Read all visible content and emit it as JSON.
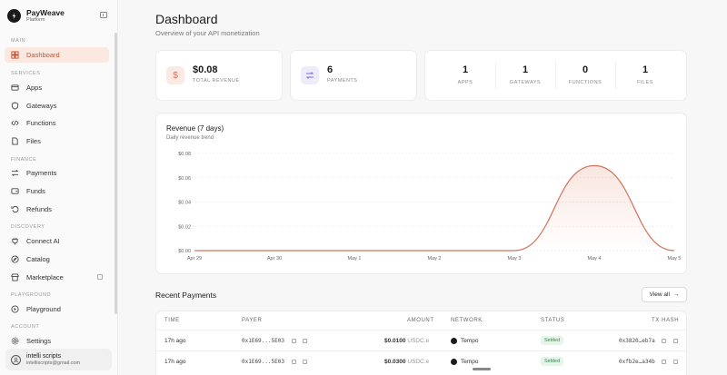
{
  "brand": {
    "name": "PayWeave",
    "sub": "Platform"
  },
  "nav": {
    "sections": [
      {
        "label": "MAIN",
        "items": [
          {
            "label": "Dashboard",
            "icon": "dashboard-icon",
            "active": true
          }
        ]
      },
      {
        "label": "SERVICES",
        "items": [
          {
            "label": "Apps",
            "icon": "apps-icon"
          },
          {
            "label": "Gateways",
            "icon": "shield-icon"
          },
          {
            "label": "Functions",
            "icon": "code-icon"
          },
          {
            "label": "Files",
            "icon": "file-icon"
          }
        ]
      },
      {
        "label": "FINANCE",
        "items": [
          {
            "label": "Payments",
            "icon": "swap-icon"
          },
          {
            "label": "Funds",
            "icon": "wallet-icon"
          },
          {
            "label": "Refunds",
            "icon": "refund-icon"
          }
        ]
      },
      {
        "label": "DISCOVERY",
        "items": [
          {
            "label": "Connect AI",
            "icon": "plug-icon"
          },
          {
            "label": "Catalog",
            "icon": "compass-icon"
          },
          {
            "label": "Marketplace",
            "icon": "store-icon"
          }
        ]
      },
      {
        "label": "PLAYGROUND",
        "items": [
          {
            "label": "Playground",
            "icon": "play-icon"
          }
        ]
      },
      {
        "label": "ACCOUNT",
        "items": [
          {
            "label": "Settings",
            "icon": "gear-icon"
          }
        ]
      }
    ]
  },
  "user": {
    "name": "intelli scripts",
    "email": "intelliscripts@gmail.com"
  },
  "page": {
    "title": "Dashboard",
    "subtitle": "Overview of your API monetization"
  },
  "stats": {
    "revenue": {
      "value": "$0.08",
      "label": "TOTAL REVENUE",
      "icon": "dollar-icon",
      "color": "#e86b4a"
    },
    "payments": {
      "value": "6",
      "label": "PAYMENTS",
      "icon": "swap-icon",
      "color": "#7c6cd8"
    },
    "mini": [
      {
        "value": "1",
        "label": "APPS"
      },
      {
        "value": "1",
        "label": "GATEWAYS"
      },
      {
        "value": "0",
        "label": "FUNCTIONS"
      },
      {
        "value": "1",
        "label": "FILES"
      }
    ]
  },
  "chart": {
    "title": "Revenue (7 days)",
    "subtitle": "Daily revenue trend"
  },
  "chart_data": {
    "type": "area",
    "title": "Revenue (7 days)",
    "subtitle": "Daily revenue trend",
    "categories": [
      "Apr 29",
      "Apr 30",
      "May 1",
      "May 2",
      "May 3",
      "May 4",
      "May 5"
    ],
    "yticks": [
      "$0.00",
      "$0.02",
      "$0.04",
      "$0.06",
      "$0.08"
    ],
    "ylim": [
      0,
      0.08
    ],
    "series": [
      {
        "values": [
          0,
          0,
          0,
          0,
          0,
          0.07,
          0
        ]
      }
    ],
    "grid": true,
    "color": "#d0735a"
  },
  "recent": {
    "title": "Recent Payments",
    "view_all": "View all",
    "columns": [
      "TIME",
      "PAYER",
      "AMOUNT",
      "NETWORK",
      "STATUS",
      "TX HASH"
    ],
    "rows": [
      {
        "time": "17h ago",
        "payer": "0x1E69...5E03",
        "amount": "$0.0100",
        "unit": "USDC.e",
        "network": "Tempo",
        "status": "Settled",
        "tx": "0x3820…eb7a"
      },
      {
        "time": "17h ago",
        "payer": "0x1E69...5E03",
        "amount": "$0.0300",
        "unit": "USDC.e",
        "network": "Tempo",
        "status": "Settled",
        "tx": "0xfb2e…a34b"
      }
    ]
  }
}
